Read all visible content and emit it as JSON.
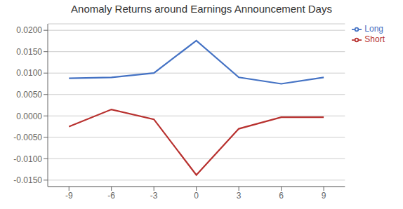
{
  "chart_data": {
    "type": "line",
    "title": "Anomaly Returns around Earnings Announcement Days",
    "x": [
      -9,
      -6,
      -3,
      0,
      3,
      6,
      9
    ],
    "series": [
      {
        "name": "Long",
        "color": "#4472C4",
        "values": [
          0.0088,
          0.009,
          0.01,
          0.0176,
          0.009,
          0.0075,
          0.009
        ]
      },
      {
        "name": "Short",
        "color": "#B8312F",
        "values": [
          -0.0025,
          0.0015,
          -0.0008,
          -0.0138,
          -0.003,
          -0.0003,
          -0.0003
        ]
      }
    ],
    "xlim": [
      -10.5,
      10.5
    ],
    "xticks": [
      -9,
      -6,
      -3,
      0,
      3,
      6,
      9
    ],
    "ylim": [
      -0.0165,
      0.0215
    ],
    "yticks": [
      {
        "value": -0.015,
        "label": "-0.0150"
      },
      {
        "value": -0.01,
        "label": "-0.0100"
      },
      {
        "value": -0.005,
        "label": "-0.0050"
      },
      {
        "value": 0.0,
        "label": "0.0000"
      },
      {
        "value": 0.005,
        "label": "0.0050"
      },
      {
        "value": 0.01,
        "label": "0.0100"
      },
      {
        "value": 0.015,
        "label": "0.0150"
      },
      {
        "value": 0.02,
        "label": "0.0200"
      }
    ],
    "grid": "y",
    "legend": "upper right"
  }
}
